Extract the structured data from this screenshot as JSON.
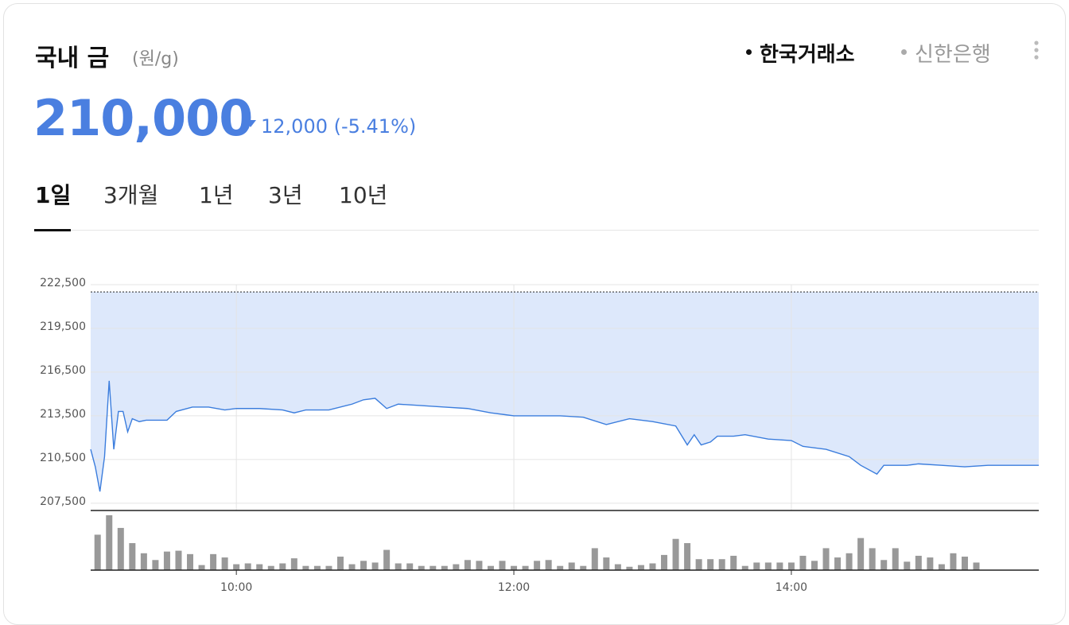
{
  "header": {
    "title": "국내 금",
    "unit": "(원/g)",
    "sources": [
      "한국거래소",
      "신한은행"
    ],
    "active_source": 0,
    "price": "210,000",
    "change": "12,000 (-5.41%)",
    "tabs": [
      "1일",
      "3개월",
      "1년",
      "3년",
      "10년"
    ],
    "active_tab": 0
  },
  "chart_data": [
    {
      "type": "line",
      "color": "#3b7ddd",
      "fill": "#dde8fb",
      "reference": 222000,
      "grid": true,
      "xlim": [
        "08:57",
        "15:47"
      ],
      "xticks": [
        "10:00",
        "12:00",
        "14:00"
      ],
      "ylim": [
        207000,
        222500
      ],
      "yticks": [
        {
          "value": 207500,
          "label": "207,500"
        },
        {
          "value": 210500,
          "label": "210,500"
        },
        {
          "value": 213500,
          "label": "213,500"
        },
        {
          "value": 216500,
          "label": "216,500"
        },
        {
          "value": 219500,
          "label": "219,500"
        },
        {
          "value": 222500,
          "label": "222,500"
        }
      ],
      "x": [
        "08:57",
        "08:59",
        "09:01",
        "09:03",
        "09:05",
        "09:07",
        "09:09",
        "09:11",
        "09:13",
        "09:15",
        "09:18",
        "09:21",
        "09:30",
        "09:34",
        "09:41",
        "09:48",
        "09:55",
        "10:00",
        "10:10",
        "10:20",
        "10:25",
        "10:30",
        "10:40",
        "10:50",
        "10:55",
        "11:00",
        "11:05",
        "11:10",
        "11:20",
        "11:30",
        "11:40",
        "11:50",
        "12:00",
        "12:10",
        "12:20",
        "12:30",
        "12:40",
        "12:50",
        "13:00",
        "13:10",
        "13:15",
        "13:18",
        "13:21",
        "13:25",
        "13:28",
        "13:35",
        "13:40",
        "13:50",
        "14:00",
        "14:05",
        "14:15",
        "14:25",
        "14:30",
        "14:37",
        "14:40",
        "14:50",
        "14:55",
        "15:05",
        "15:15",
        "15:25",
        "15:47"
      ],
      "values": [
        211200,
        210000,
        208300,
        210700,
        215900,
        211200,
        213800,
        213800,
        212400,
        213300,
        213100,
        213200,
        213200,
        213800,
        214100,
        214100,
        213900,
        214000,
        214000,
        213900,
        213700,
        213900,
        213900,
        214300,
        214600,
        214700,
        214000,
        214300,
        214200,
        214100,
        214000,
        213700,
        213500,
        213500,
        213500,
        213400,
        212900,
        213300,
        213100,
        212800,
        211500,
        212200,
        211500,
        211700,
        212100,
        212100,
        212200,
        211900,
        211800,
        211400,
        211200,
        210700,
        210100,
        209500,
        210100,
        210100,
        210200,
        210100,
        210000,
        210100,
        210100
      ]
    },
    {
      "type": "bar",
      "color": "#999999",
      "x": [
        "09:00",
        "09:05",
        "09:10",
        "09:15",
        "09:20",
        "09:25",
        "09:30",
        "09:35",
        "09:40",
        "09:45",
        "09:50",
        "09:55",
        "10:00",
        "10:05",
        "10:10",
        "10:15",
        "10:20",
        "10:25",
        "10:30",
        "10:35",
        "10:40",
        "10:45",
        "10:50",
        "10:55",
        "11:00",
        "11:05",
        "11:10",
        "11:15",
        "11:20",
        "11:25",
        "11:30",
        "11:35",
        "11:40",
        "11:45",
        "11:50",
        "11:55",
        "12:00",
        "12:05",
        "12:10",
        "12:15",
        "12:20",
        "12:25",
        "12:30",
        "12:35",
        "12:40",
        "12:45",
        "12:50",
        "12:55",
        "13:00",
        "13:05",
        "13:10",
        "13:15",
        "13:20",
        "13:25",
        "13:30",
        "13:35",
        "13:40",
        "13:45",
        "13:50",
        "13:55",
        "14:00",
        "14:05",
        "14:10",
        "14:15",
        "14:20",
        "14:25",
        "14:30",
        "14:35",
        "14:40",
        "14:45",
        "14:50",
        "14:55",
        "15:00",
        "15:05",
        "15:10",
        "15:15",
        "15:20"
      ],
      "values": [
        42,
        65,
        50,
        32,
        20,
        12,
        22,
        23,
        19,
        6,
        19,
        15,
        7,
        8,
        7,
        5,
        8,
        14,
        5,
        5,
        5,
        16,
        7,
        11,
        9,
        24,
        8,
        8,
        5,
        5,
        5,
        7,
        12,
        11,
        5,
        11,
        5,
        5,
        11,
        12,
        5,
        9,
        5,
        26,
        15,
        7,
        4,
        6,
        8,
        18,
        37,
        32,
        13,
        13,
        13,
        17,
        5,
        9,
        9,
        9,
        9,
        17,
        11,
        26,
        15,
        20,
        38,
        26,
        12,
        26,
        10,
        17,
        15,
        7,
        20,
        16,
        9
      ]
    }
  ]
}
